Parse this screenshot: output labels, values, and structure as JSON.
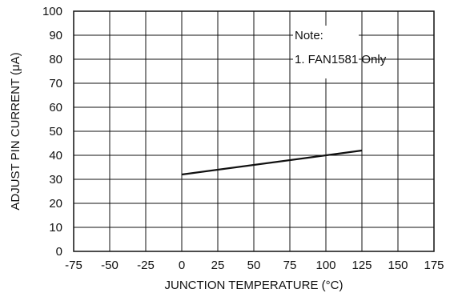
{
  "chart_data": {
    "type": "line",
    "xlabel": "JUNCTION TEMPERATURE (°C)",
    "ylabel": "ADJUST PIN CURRENT (μA)",
    "xlim": [
      -75,
      175
    ],
    "ylim": [
      0,
      100
    ],
    "x_ticks": [
      "-75",
      "-50",
      "-25",
      "0",
      "25",
      "50",
      "75",
      "100",
      "125",
      "150",
      "175"
    ],
    "y_ticks": [
      "0",
      "10",
      "20",
      "30",
      "40",
      "50",
      "60",
      "70",
      "80",
      "90",
      "100"
    ],
    "grid": true,
    "series": [
      {
        "x": [
          0,
          125
        ],
        "y": [
          32,
          42
        ]
      }
    ],
    "annotation": {
      "title": "Note:",
      "lines": [
        "1. FAN1581 Only"
      ]
    }
  },
  "colors": {
    "line": "#111111",
    "grid": "#111111",
    "background": "#ffffff"
  }
}
